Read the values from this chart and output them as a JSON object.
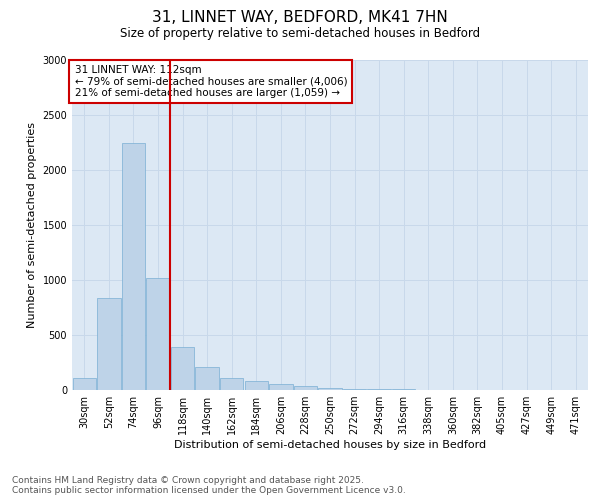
{
  "title_line1": "31, LINNET WAY, BEDFORD, MK41 7HN",
  "title_line2": "Size of property relative to semi-detached houses in Bedford",
  "xlabel": "Distribution of semi-detached houses by size in Bedford",
  "ylabel": "Number of semi-detached properties",
  "property_label": "31 LINNET WAY: 112sqm",
  "pct_smaller": 79,
  "count_smaller": "4,006",
  "pct_larger": 21,
  "count_larger": "1,059",
  "bin_labels": [
    "30sqm",
    "52sqm",
    "74sqm",
    "96sqm",
    "118sqm",
    "140sqm",
    "162sqm",
    "184sqm",
    "206sqm",
    "228sqm",
    "250sqm",
    "272sqm",
    "294sqm",
    "316sqm",
    "338sqm",
    "360sqm",
    "382sqm",
    "405sqm",
    "427sqm",
    "449sqm",
    "471sqm"
  ],
  "bar_heights": [
    110,
    840,
    2250,
    1020,
    390,
    210,
    110,
    80,
    55,
    40,
    20,
    10,
    5,
    5,
    2,
    1,
    1,
    0,
    0,
    0,
    0
  ],
  "bar_color": "#bed3e8",
  "bar_edge_color": "#7aafd4",
  "vline_color": "#cc0000",
  "vline_x": 3.5,
  "annotation_box_color": "#cc0000",
  "grid_color": "#c8d8ea",
  "bg_color": "#dce8f4",
  "ylim": [
    0,
    3000
  ],
  "yticks": [
    0,
    500,
    1000,
    1500,
    2000,
    2500,
    3000
  ],
  "footer_line1": "Contains HM Land Registry data © Crown copyright and database right 2025.",
  "footer_line2": "Contains public sector information licensed under the Open Government Licence v3.0.",
  "title_fontsize": 11,
  "subtitle_fontsize": 8.5,
  "axis_label_fontsize": 8,
  "tick_fontsize": 7,
  "footer_fontsize": 6.5,
  "ann_fontsize": 7.5
}
